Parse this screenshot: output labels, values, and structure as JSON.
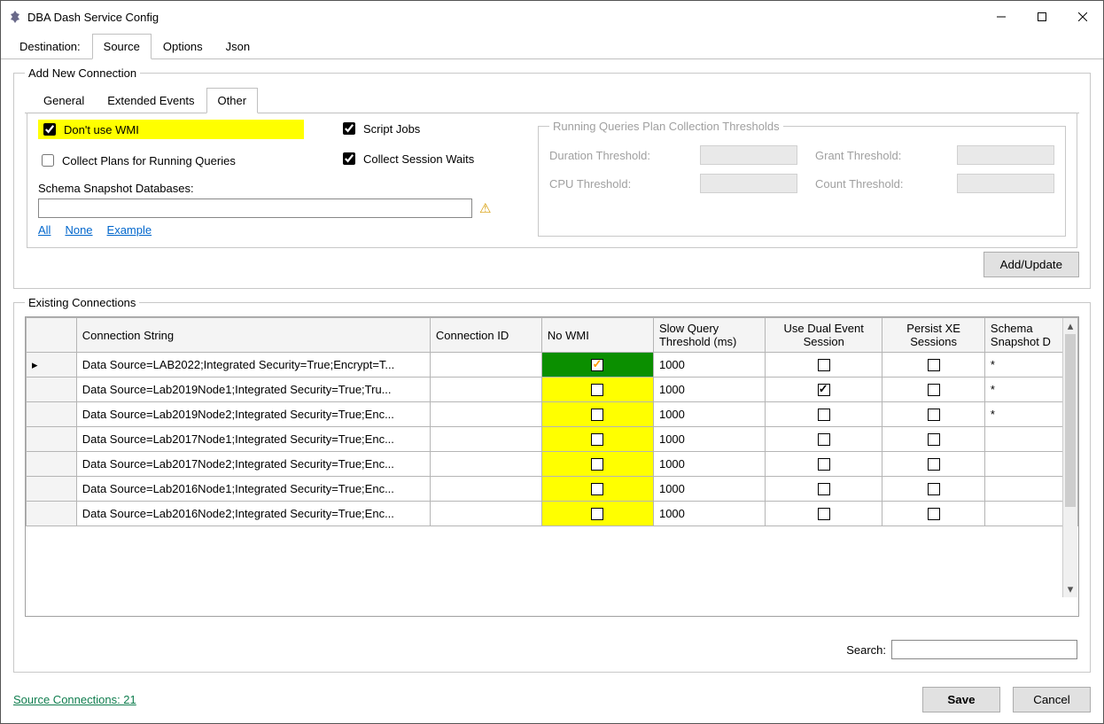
{
  "title": "DBA Dash Service Config",
  "topTabs": {
    "destination": "Destination:",
    "source": "Source",
    "options": "Options",
    "json": "Json",
    "activeIndex": 1
  },
  "groupbox": {
    "addNew": "Add New Connection",
    "innerTabs": {
      "general": "General",
      "xe": "Extended Events",
      "other": "Other",
      "activeIndex": 2
    },
    "checks": {
      "dontUseWmi": {
        "label": "Don't use WMI",
        "checked": true,
        "highlight": true
      },
      "collectPlans": {
        "label": "Collect Plans for Running Queries",
        "checked": false
      },
      "scriptJobs": {
        "label": "Script Jobs",
        "checked": true
      },
      "collectWaits": {
        "label": "Collect Session Waits",
        "checked": true
      }
    },
    "schemaLabel": "Schema Snapshot Databases:",
    "schemaValue": "",
    "links": {
      "all": "All",
      "none": "None",
      "example": "Example"
    },
    "thresholds": {
      "legend": "Running Queries Plan Collection Thresholds",
      "duration": "Duration Threshold:",
      "cpu": "CPU Threshold:",
      "grant": "Grant Threshold:",
      "count": "Count Threshold:"
    },
    "addUpdate": "Add/Update"
  },
  "existing": {
    "legend": "Existing Connections",
    "columns": {
      "cs": "Connection String",
      "cid": "Connection ID",
      "nowmi": "No WMI",
      "slow": "Slow Query Threshold (ms)",
      "dual": "Use Dual Event Session",
      "persist": "Persist XE Sessions",
      "schema": "Schema Snapshot D"
    },
    "rows": [
      {
        "selected": true,
        "cs": "Data Source=LAB2022;Integrated Security=True;Encrypt=T...",
        "nowmi": true,
        "slow": "1000",
        "dual": false,
        "persist": false,
        "schema": "*"
      },
      {
        "selected": false,
        "cs": "Data Source=Lab2019Node1;Integrated Security=True;Tru...",
        "nowmi": false,
        "slow": "1000",
        "dual": true,
        "persist": false,
        "schema": "*"
      },
      {
        "selected": false,
        "cs": "Data Source=Lab2019Node2;Integrated Security=True;Enc...",
        "nowmi": false,
        "slow": "1000",
        "dual": false,
        "persist": false,
        "schema": "*"
      },
      {
        "selected": false,
        "cs": "Data Source=Lab2017Node1;Integrated Security=True;Enc...",
        "nowmi": false,
        "slow": "1000",
        "dual": false,
        "persist": false,
        "schema": ""
      },
      {
        "selected": false,
        "cs": "Data Source=Lab2017Node2;Integrated Security=True;Enc...",
        "nowmi": false,
        "slow": "1000",
        "dual": false,
        "persist": false,
        "schema": ""
      },
      {
        "selected": false,
        "cs": "Data Source=Lab2016Node1;Integrated Security=True;Enc...",
        "nowmi": false,
        "slow": "1000",
        "dual": false,
        "persist": false,
        "schema": ""
      },
      {
        "selected": false,
        "cs": "Data Source=Lab2016Node2;Integrated Security=True;Enc...",
        "nowmi": false,
        "slow": "1000",
        "dual": false,
        "persist": false,
        "schema": ""
      }
    ],
    "searchLabel": "Search:",
    "searchValue": ""
  },
  "footer": {
    "link": "Source Connections: 21",
    "save": "Save",
    "cancel": "Cancel"
  }
}
